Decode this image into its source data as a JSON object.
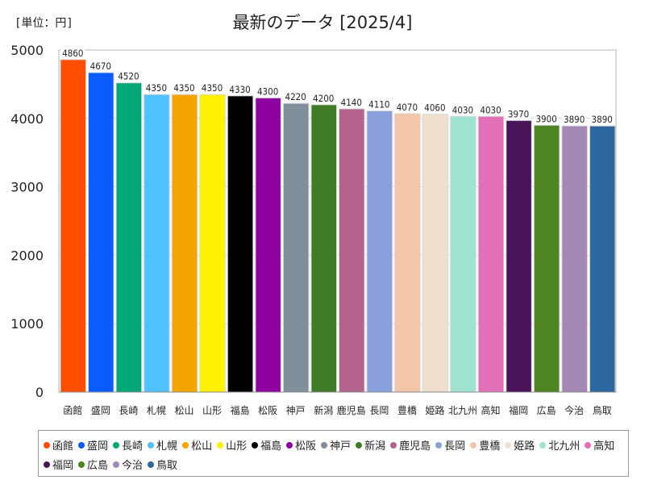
{
  "unit_label": "[単位：円]",
  "chart_data": {
    "type": "bar",
    "title": "最新のデータ [2025/4]",
    "ylim": [
      0,
      5000
    ],
    "yticks": [
      0,
      1000,
      2000,
      3000,
      4000,
      5000
    ],
    "grid": true,
    "legend_position": "bottom",
    "categories": [
      "函館",
      "盛岡",
      "長崎",
      "札幌",
      "松山",
      "山形",
      "福島",
      "松阪",
      "神戸",
      "新潟",
      "鹿児島",
      "長岡",
      "豊橋",
      "姫路",
      "北九州",
      "高知",
      "福岡",
      "広島",
      "今治",
      "鳥取"
    ],
    "values": [
      4860,
      4670,
      4520,
      4350,
      4350,
      4350,
      4330,
      4300,
      4220,
      4200,
      4140,
      4110,
      4070,
      4060,
      4030,
      4030,
      3970,
      3900,
      3890,
      3890
    ],
    "colors": [
      "#ff4e00",
      "#0a5cff",
      "#00a878",
      "#4ec3ff",
      "#f5a400",
      "#fff200",
      "#000000",
      "#8f00a0",
      "#7f8f9c",
      "#3e7d25",
      "#b5638c",
      "#8aa0dc",
      "#f3c6a8",
      "#efdfcc",
      "#9de3cf",
      "#e26fb8",
      "#4a1558",
      "#4e8522",
      "#a388b5",
      "#2f679f"
    ]
  }
}
